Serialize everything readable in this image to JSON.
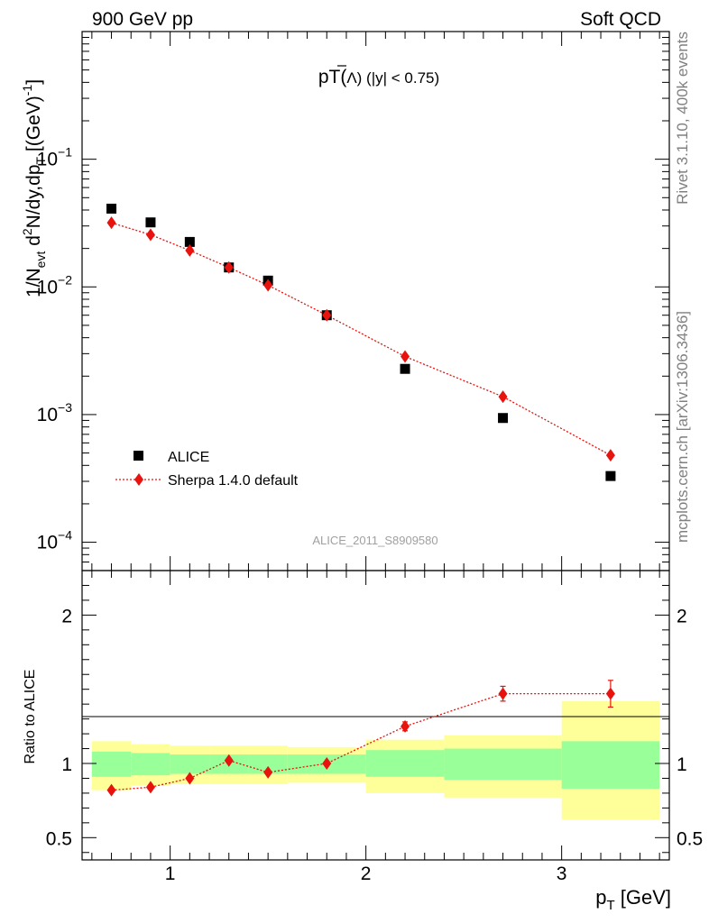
{
  "header": {
    "left": "900 GeV pp",
    "right": "Soft QCD"
  },
  "side_text": {
    "top": "Rivet 3.1.10,  400k events",
    "bottom": "mcplots.cern.ch [arXiv:1306.3436]"
  },
  "colors": {
    "data": "#000000",
    "mc": "#e8120e",
    "band_inner": "#99ff99",
    "band_outer": "#ffff99",
    "watermark": "#a0a0a0"
  },
  "chart_data": [
    {
      "type": "scatter",
      "title_main": "pT(",
      "title_particle": "Λ",
      "title_suffix": ") (|y| < 0.75)",
      "ylabel_main": "1/N",
      "ylabel_sub1": "evt",
      "ylabel_mid": " d",
      "ylabel_sup1": "2",
      "ylabel_mid2": "N/dy,dp",
      "ylabel_sub2": "T",
      "ylabel_unit": " [(GeV)",
      "ylabel_sup2": "-1",
      "ylabel_end": "]",
      "yscale": "log",
      "ylim": [
        6e-05,
        1.0
      ],
      "xlim": [
        0.55,
        3.55
      ],
      "ytick_labels": [
        {
          "value": 0.1,
          "base": "10",
          "exp": "−1"
        },
        {
          "value": 0.01,
          "base": "10",
          "exp": "−2"
        },
        {
          "value": 0.001,
          "base": "10",
          "exp": "−3"
        },
        {
          "value": 0.0001,
          "base": "10",
          "exp": "−4"
        }
      ],
      "watermark": "ALICE_2011_S8909580",
      "series": [
        {
          "name": "ALICE",
          "marker": "square",
          "x": [
            0.7,
            0.9,
            1.1,
            1.3,
            1.5,
            1.8,
            2.2,
            2.7,
            3.25
          ],
          "y": [
            0.041,
            0.032,
            0.0225,
            0.0142,
            0.0112,
            0.006,
            0.00228,
            0.00094,
            0.00033
          ]
        },
        {
          "name": "Sherpa 1.4.0 default",
          "marker": "diamond",
          "x": [
            0.7,
            0.9,
            1.1,
            1.3,
            1.5,
            1.8,
            2.2,
            2.7,
            3.25
          ],
          "y": [
            0.0318,
            0.0256,
            0.0193,
            0.0142,
            0.0103,
            0.006,
            0.00285,
            0.00138,
            0.00048
          ]
        }
      ],
      "legend": [
        "ALICE",
        "Sherpa 1.4.0 default"
      ]
    },
    {
      "type": "scatter",
      "ylabel": "Ratio to ALICE",
      "xlabel_main": "p",
      "xlabel_sub": "T",
      "xlabel_unit": " [GeV]",
      "ylim": [
        0.35,
        2.3
      ],
      "xlim": [
        0.55,
        3.55
      ],
      "ytick_labels": [
        "0.5",
        "1",
        "2"
      ],
      "ytick_values": [
        0.5,
        1,
        2
      ],
      "xtick_labels": [
        "1",
        "2",
        "3"
      ],
      "xtick_values": [
        1,
        2,
        3
      ],
      "bands": [
        {
          "x0": 0.6,
          "x1": 0.8,
          "inner": [
            0.91,
            1.08
          ],
          "outer": [
            0.82,
            1.15
          ]
        },
        {
          "x0": 0.8,
          "x1": 1.0,
          "inner": [
            0.92,
            1.07
          ],
          "outer": [
            0.85,
            1.13
          ]
        },
        {
          "x0": 1.0,
          "x1": 1.2,
          "inner": [
            0.93,
            1.06
          ],
          "outer": [
            0.86,
            1.12
          ]
        },
        {
          "x0": 1.2,
          "x1": 1.4,
          "inner": [
            0.93,
            1.06
          ],
          "outer": [
            0.86,
            1.12
          ]
        },
        {
          "x0": 1.4,
          "x1": 1.6,
          "inner": [
            0.93,
            1.06
          ],
          "outer": [
            0.86,
            1.12
          ]
        },
        {
          "x0": 1.6,
          "x1": 2.0,
          "inner": [
            0.93,
            1.06
          ],
          "outer": [
            0.87,
            1.11
          ]
        },
        {
          "x0": 2.0,
          "x1": 2.4,
          "inner": [
            0.91,
            1.09
          ],
          "outer": [
            0.8,
            1.16
          ]
        },
        {
          "x0": 2.4,
          "x1": 3.0,
          "inner": [
            0.89,
            1.1
          ],
          "outer": [
            0.77,
            1.19
          ]
        },
        {
          "x0": 3.0,
          "x1": 3.5,
          "inner": [
            0.83,
            1.15
          ],
          "outer": [
            0.62,
            1.42
          ]
        }
      ],
      "series": [
        {
          "name": "Sherpa 1.4.0 default",
          "x": [
            0.7,
            0.9,
            1.1,
            1.3,
            1.5,
            1.8,
            2.2,
            2.7,
            3.25
          ],
          "y": [
            0.82,
            0.84,
            0.9,
            1.02,
            0.94,
            1.0,
            1.25,
            1.47,
            1.47
          ],
          "err": [
            0.01,
            0.01,
            0.01,
            0.01,
            0.01,
            0.01,
            0.03,
            0.05,
            0.09
          ]
        }
      ]
    }
  ]
}
